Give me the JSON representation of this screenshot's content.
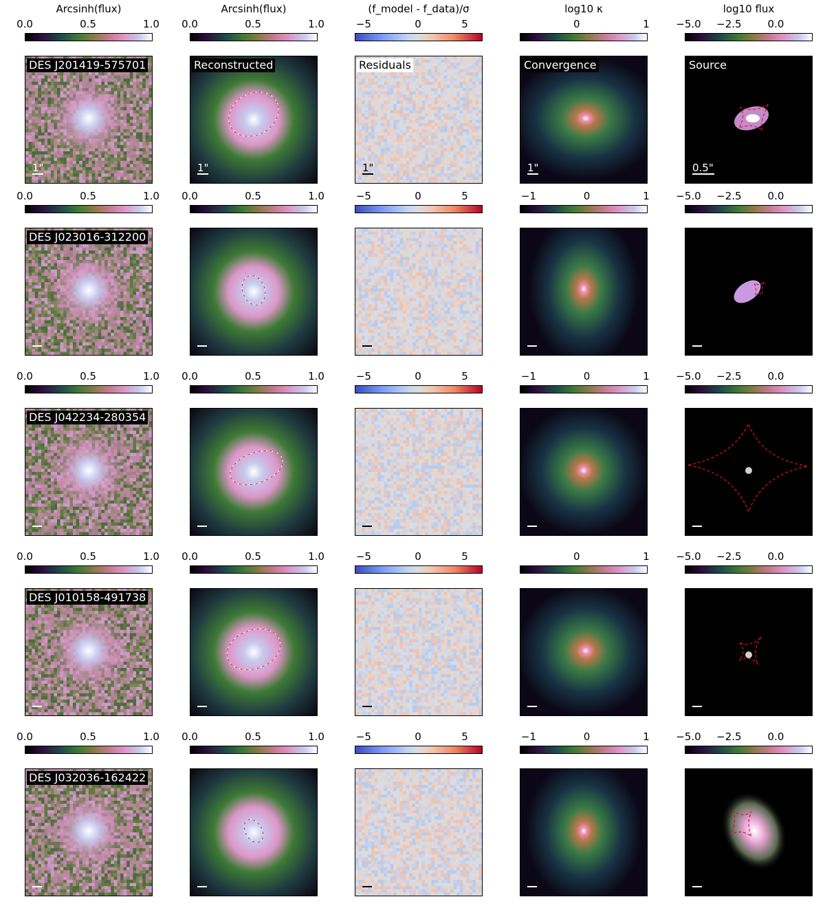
{
  "column_titles": [
    "Arcsinh(flux)",
    "Arcsinh(flux)",
    "(f_model - f_data)/σ",
    "log10 κ",
    "log10 flux"
  ],
  "rows": [
    {
      "name": "DES J201419-575701",
      "ticks": [
        [
          "0.0",
          "0.5",
          "1.0"
        ],
        [
          "0.0",
          "0.5",
          "1.0"
        ],
        [
          "−5",
          "0",
          "5"
        ],
        [
          "0",
          "1"
        ],
        [
          "−5.0",
          "−2.5",
          "0.0"
        ]
      ],
      "labels": [
        "DES J201419-575701",
        "Reconstructed",
        "Residuals",
        "Convergence",
        "Source"
      ],
      "scalebars": [
        "1\"",
        "1\"",
        "1\"",
        "1\"",
        "0.5\""
      ]
    },
    {
      "name": "DES J023016-312200",
      "ticks": [
        [
          "0.0",
          "0.5",
          "1.0"
        ],
        [
          "0.0",
          "0.5",
          "1.0"
        ],
        [
          "−5",
          "0",
          "5"
        ],
        [
          "−1",
          "0",
          "1"
        ],
        [
          "−5.0",
          "−2.5",
          "0.0"
        ]
      ],
      "labels": [
        "DES J023016-312200",
        "",
        "",
        "",
        ""
      ],
      "scalebars": [
        "",
        "",
        "",
        "",
        ""
      ]
    },
    {
      "name": "DES J042234-280354",
      "ticks": [
        [
          "0.0",
          "0.5",
          "1.0"
        ],
        [
          "0.0",
          "0.5",
          "1.0"
        ],
        [
          "−5",
          "0",
          "5"
        ],
        [
          "−1",
          "0",
          "1"
        ],
        [
          "−5.0",
          "−2.5",
          "0.0"
        ]
      ],
      "labels": [
        "DES J042234-280354",
        "",
        "",
        "",
        ""
      ],
      "scalebars": [
        "",
        "",
        "",
        "",
        ""
      ]
    },
    {
      "name": "DES J010158-491738",
      "ticks": [
        [
          "0.0",
          "0.5",
          "1.0"
        ],
        [
          "0.0",
          "0.5",
          "1.0"
        ],
        [
          "−5",
          "0",
          "5"
        ],
        [
          "0",
          "1"
        ],
        [
          "−5.0",
          "−2.5",
          "0.0"
        ]
      ],
      "labels": [
        "DES J010158-491738",
        "",
        "",
        "",
        ""
      ],
      "scalebars": [
        "",
        "",
        "",
        "",
        ""
      ]
    },
    {
      "name": "DES J032036-162422",
      "ticks": [
        [
          "0.0",
          "0.5",
          "1.0"
        ],
        [
          "0.0",
          "0.5",
          "1.0"
        ],
        [
          "−5",
          "0",
          "5"
        ],
        [
          "−1",
          "0",
          "1"
        ],
        [
          "−5.0",
          "−2.5",
          "0.0"
        ]
      ],
      "labels": [
        "DES J032036-162422",
        "",
        "",
        "",
        ""
      ],
      "scalebars": [
        "",
        "",
        "",
        "",
        ""
      ]
    }
  ],
  "colors": {
    "flux_cmap": [
      "#000000",
      "#2a0d3d",
      "#1f4a4a",
      "#3e7a35",
      "#8a7a45",
      "#c57a8e",
      "#dd96c8",
      "#c7cbee",
      "#ffffff"
    ],
    "resid_cmap": [
      "#3b4cc0",
      "#7f9ef8",
      "#dcdcdc",
      "#ef8a66",
      "#b40426"
    ],
    "caustic": "#e0102a"
  }
}
